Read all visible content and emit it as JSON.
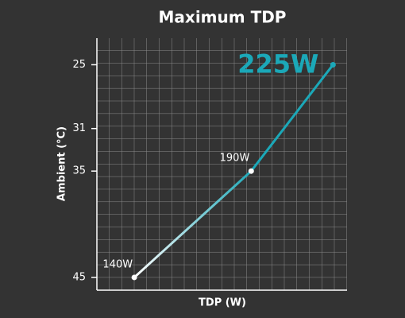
{
  "chart_data": {
    "type": "line",
    "title": "Maximum TDP",
    "x_label": "TDP (W)",
    "y_label": "Ambient (°C)",
    "x": [
      140,
      190,
      225
    ],
    "series": [
      {
        "color": "#1ba8b8",
        "values": [
          45,
          35,
          25
        ],
        "value_labels": [
          "140W",
          "190W",
          "225W"
        ]
      }
    ],
    "xlim": [
      124,
      231
    ],
    "ylim": [
      46.2,
      22.5
    ],
    "yticks": [
      25,
      31,
      35,
      45
    ],
    "grid": true
  }
}
